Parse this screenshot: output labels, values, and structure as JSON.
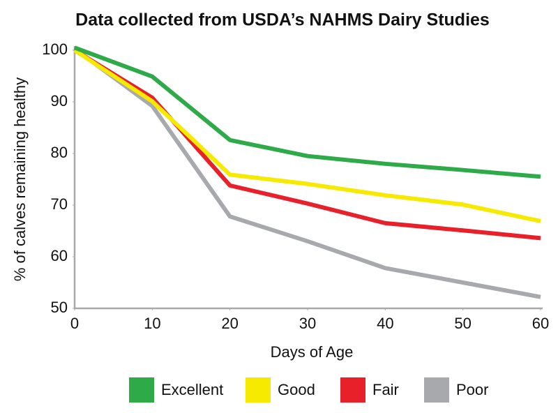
{
  "chart_data": {
    "type": "line",
    "title": "Data collected from USDA’s NAHMS Dairy Studies",
    "x_label": "Days of Age",
    "y_label": "% of calves remaining healthy",
    "x": [
      0,
      10,
      20,
      30,
      40,
      50,
      60
    ],
    "series": [
      {
        "name": "Excellent",
        "color": "#2eab48",
        "values": [
          100.5,
          94.9,
          82.6,
          79.5,
          78.0,
          76.8,
          75.5
        ]
      },
      {
        "name": "Good",
        "color": "#f6ea00",
        "values": [
          100,
          90.1,
          75.9,
          74.1,
          71.9,
          70.1,
          66.9
        ]
      },
      {
        "name": "Fair",
        "color": "#e8202a",
        "values": [
          100,
          90.8,
          73.8,
          70.3,
          66.5,
          65.1,
          63.6
        ]
      },
      {
        "name": "Poor",
        "color": "#a7a9ac",
        "values": [
          100.3,
          89.2,
          67.8,
          63.0,
          57.8,
          55.0,
          52.2
        ]
      }
    ],
    "xlim": [
      0,
      60
    ],
    "xticks": [
      0,
      10,
      20,
      30,
      40,
      50,
      60
    ],
    "ylim": [
      50,
      100
    ],
    "yticks": [
      50,
      60,
      70,
      80,
      90,
      100
    ],
    "grid": false,
    "legend": "bottom"
  }
}
